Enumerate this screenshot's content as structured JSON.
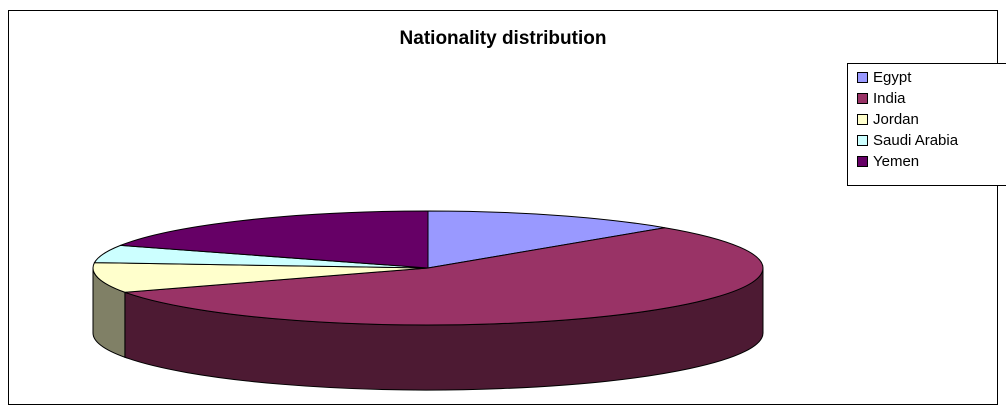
{
  "chart_data": {
    "type": "pie",
    "title": "Nationality distribution",
    "categories": [
      "Egypt",
      "India",
      "Jordan",
      "Saudi Arabia",
      "Yemen"
    ],
    "values": [
      12.5,
      55.5,
      8.5,
      5,
      18.5
    ],
    "colors": [
      "#9999FF",
      "#993366",
      "#FFFFCC",
      "#CCFFFF",
      "#660066"
    ],
    "legend": "right"
  }
}
